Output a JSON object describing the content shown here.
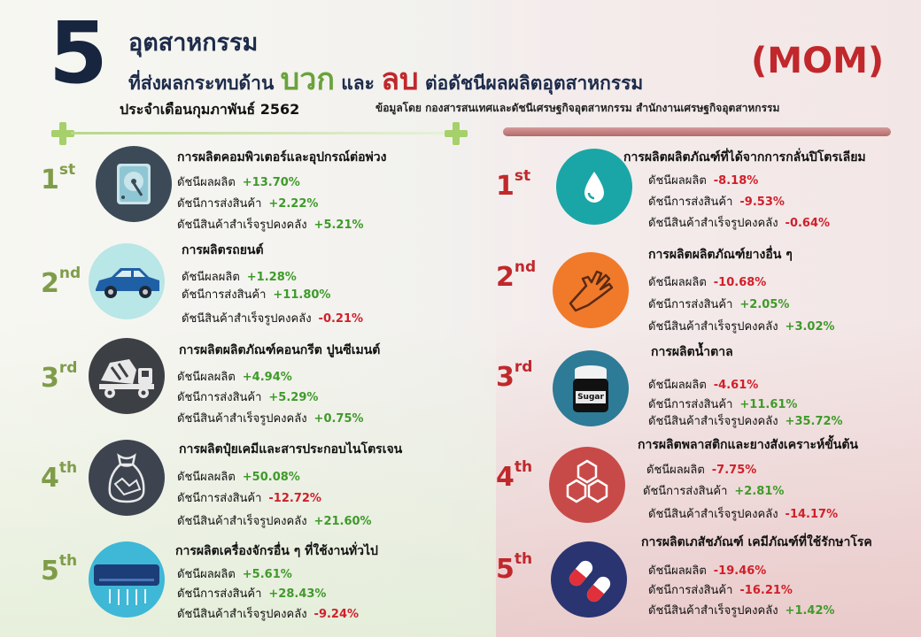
{
  "header": {
    "number": "5",
    "line1": "อุตสาหกรรม",
    "line2_pre": "ที่ส่งผลกระทบด้าน",
    "positive_word": "บวก",
    "and_word": "และ",
    "negative_word": "ลบ",
    "line2_post": "ต่อดัชนีผลผลิตอุตสาหกรรม",
    "period": "ประจำเดือนกุมภาพันธ์ 2562",
    "mom": "(MOM)",
    "source": "ข้อมูลโดย กองสารสนเทศและดัชนีเศรษฐกิจอุตสาหกรรม สำนักงานเศรษฐกิจอุตสาหกรรม"
  },
  "colors": {
    "positive": "#3f9a2a",
    "negative": "#d0202a",
    "rank_left": "#7f9c49",
    "rank_right": "#c0282c"
  },
  "positive": [
    {
      "rank": "1",
      "suffix": "st",
      "icon": "hard-drive-icon",
      "title": "การผลิตคอมพิวเตอร์และอุปกรณ์ต่อพ่วง",
      "m1_label": "ดัชนีผลผลิต",
      "m1_value": "+13.70%",
      "m2_label": "ดัชนีการส่งสินค้า",
      "m2_value": "+2.22%",
      "m3_label": "ดัชนีสินค้าสำเร็จรูปคงคลัง",
      "m3_value": "+5.21%"
    },
    {
      "rank": "2",
      "suffix": "nd",
      "icon": "car-icon",
      "title": "การผลิตรถยนต์",
      "m1_label": "ดัชนีผลผลิต",
      "m1_value": "+1.28%",
      "m2_label": "ดัชนีการส่งสินค้า",
      "m2_value": "+11.80%",
      "m3_label": "ดัชนีสินค้าสำเร็จรูปคงคลัง",
      "m3_value": "-0.21%"
    },
    {
      "rank": "3",
      "suffix": "rd",
      "icon": "cement-truck-icon",
      "title": "การผลิตผลิตภัณฑ์คอนกรีต ปูนซีเมนต์",
      "m1_label": "ดัชนีผลผลิต",
      "m1_value": "+4.94%",
      "m2_label": "ดัชนีการส่งสินค้า",
      "m2_value": "+5.29%",
      "m3_label": "ดัชนีสินค้าสำเร็จรูปคงคลัง",
      "m3_value": "+0.75%"
    },
    {
      "rank": "4",
      "suffix": "th",
      "icon": "fertilizer-sack-icon",
      "title": "การผลิตปุ๋ยเคมีและสารประกอบไนโตรเจน",
      "m1_label": "ดัชนีผลผลิต",
      "m1_value": "+50.08%",
      "m2_label": "ดัชนีการส่งสินค้า",
      "m2_value": "-12.72%",
      "m3_label": "ดัชนีสินค้าสำเร็จรูปคงคลัง",
      "m3_value": "+21.60%"
    },
    {
      "rank": "5",
      "suffix": "th",
      "icon": "air-conditioner-icon",
      "title": "การผลิตเครื่องจักรอื่น ๆ ที่ใช้งานทั่วไป",
      "m1_label": "ดัชนีผลผลิต",
      "m1_value": "+5.61%",
      "m2_label": "ดัชนีการส่งสินค้า",
      "m2_value": "+28.43%",
      "m3_label": "ดัชนีสินค้าสำเร็จรูปคงคลัง",
      "m3_value": "-9.24%"
    }
  ],
  "negative": [
    {
      "rank": "1",
      "suffix": "st",
      "icon": "oil-drop-icon",
      "title": "การผลิตผลิตภัณฑ์ที่ได้จากการกลั่นปิโตรเลียม",
      "m1_label": "ดัชนีผลผลิต",
      "m1_value": "-8.18%",
      "m2_label": "ดัชนีการส่งสินค้า",
      "m2_value": "-9.53%",
      "m3_label": "ดัชนีสินค้าสำเร็จรูปคงคลัง",
      "m3_value": "-0.64%"
    },
    {
      "rank": "2",
      "suffix": "nd",
      "icon": "rubber-glove-icon",
      "title": "การผลิตผลิตภัณฑ์ยางอื่น ๆ",
      "m1_label": "ดัชนีผลผลิต",
      "m1_value": "-10.68%",
      "m2_label": "ดัชนีการส่งสินค้า",
      "m2_value": "+2.05%",
      "m3_label": "ดัชนีสินค้าสำเร็จรูปคงคลัง",
      "m3_value": "+3.02%"
    },
    {
      "rank": "3",
      "suffix": "rd",
      "icon": "sugar-jar-icon",
      "title": "การผลิตน้ำตาล",
      "jar_label": "Sugar",
      "m1_label": "ดัชนีผลผลิต",
      "m1_value": "-4.61%",
      "m2_label": "ดัชนีการส่งสินค้า",
      "m2_value": "+11.61%",
      "m3_label": "ดัชนีสินค้าสำเร็จรูปคงคลัง",
      "m3_value": "+35.72%"
    },
    {
      "rank": "4",
      "suffix": "th",
      "icon": "hexagon-molecule-icon",
      "title": "การผลิตพลาสติกและยางสังเคราะห์ขั้นต้น",
      "m1_label": "ดัชนีผลผลิต",
      "m1_value": "-7.75%",
      "m2_label": "ดัชนีการส่งสินค้า",
      "m2_value": "+2.81%",
      "m3_label": "ดัชนีสินค้าสำเร็จรูปคงคลัง",
      "m3_value": "-14.17%"
    },
    {
      "rank": "5",
      "suffix": "th",
      "icon": "pills-icon",
      "title": "การผลิตเภสัชภัณฑ์ เคมีภัณฑ์ที่ใช้รักษาโรค",
      "m1_label": "ดัชนีผลผลิต",
      "m1_value": "-19.46%",
      "m2_label": "ดัชนีการส่งสินค้า",
      "m2_value": "-16.21%",
      "m3_label": "ดัชนีสินค้าสำเร็จรูปคงคลัง",
      "m3_value": "+1.42%"
    }
  ]
}
